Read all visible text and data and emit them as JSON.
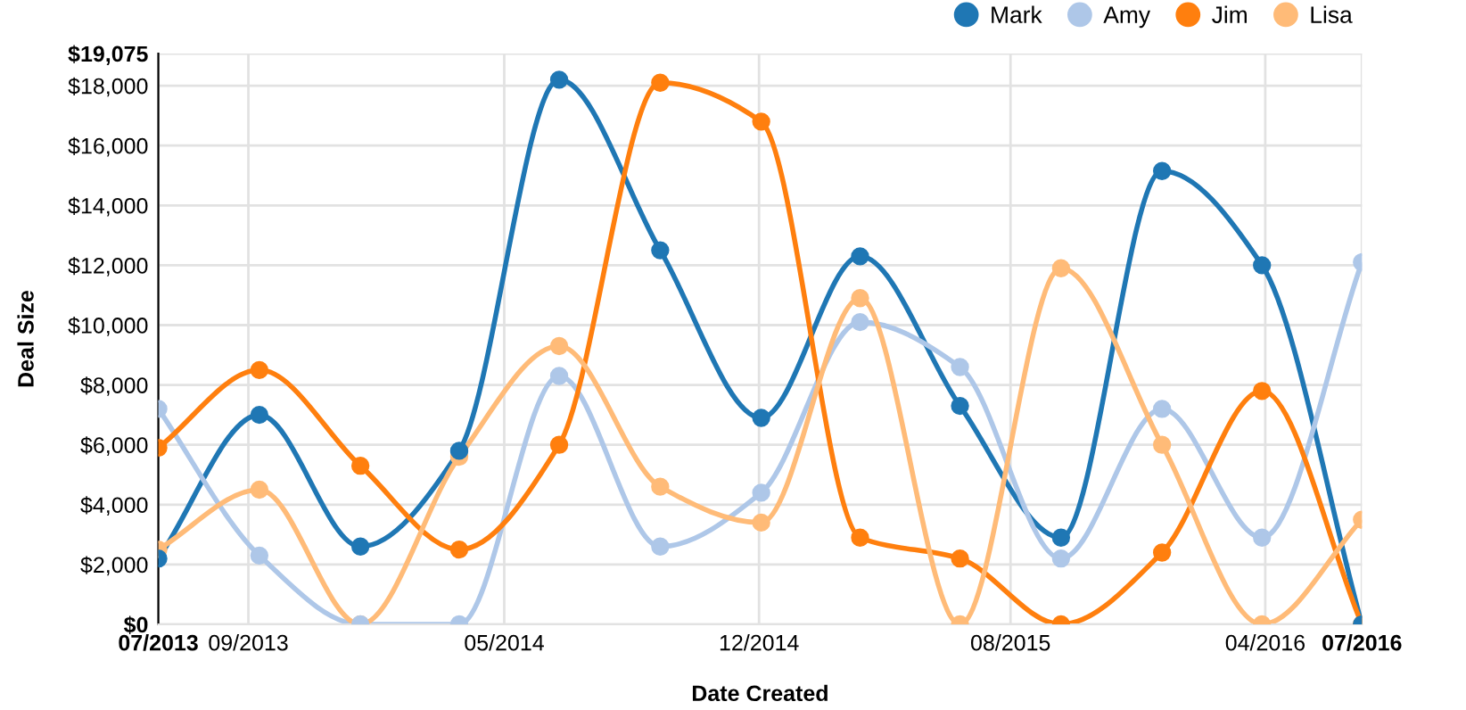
{
  "chart_data": {
    "type": "line",
    "xlabel": "Date Created",
    "ylabel": "Deal Size",
    "x": [
      "2013-07-01",
      "2013-10-01",
      "2014-01-01",
      "2014-04-01",
      "2014-07-01",
      "2014-10-01",
      "2015-01-01",
      "2015-04-01",
      "2015-07-01",
      "2015-10-01",
      "2016-01-01",
      "2016-04-01",
      "2016-07-01"
    ],
    "series": [
      {
        "name": "Mark",
        "color": "#1f77b4",
        "values": [
          2200,
          7000,
          2600,
          5800,
          18200,
          12500,
          6900,
          12300,
          7300,
          2900,
          15150,
          12000,
          0
        ]
      },
      {
        "name": "Amy",
        "color": "#aec7e8",
        "values": [
          7200,
          2300,
          0,
          0,
          8300,
          2600,
          4400,
          10100,
          8600,
          2200,
          7200,
          2900,
          12100
        ]
      },
      {
        "name": "Jim",
        "color": "#ff7f0e",
        "values": [
          5900,
          8500,
          5300,
          2500,
          6000,
          18100,
          16800,
          2900,
          2200,
          0,
          2400,
          7800,
          0
        ]
      },
      {
        "name": "Lisa",
        "color": "#ffbb78",
        "values": [
          2500,
          4500,
          0,
          5600,
          9300,
          4600,
          3400,
          10900,
          0,
          11900,
          6000,
          0,
          3500
        ]
      }
    ],
    "xlim": [
      "2013-07-01",
      "2016-07-01"
    ],
    "xticks": [
      {
        "value": "2013-07-01",
        "label": "07/2013"
      },
      {
        "value": "2013-09-21",
        "label": "09/2013"
      },
      {
        "value": "2014-05-12",
        "label": "05/2014"
      },
      {
        "value": "2014-12-30",
        "label": "12/2014"
      },
      {
        "value": "2015-08-16",
        "label": "08/2015"
      },
      {
        "value": "2016-04-04",
        "label": "04/2016"
      },
      {
        "value": "2016-07-01",
        "label": "07/2016"
      }
    ],
    "ylim": [
      0,
      19075
    ],
    "yticks": [
      {
        "value": 0,
        "label": "$0"
      },
      {
        "value": 2000,
        "label": "$2,000"
      },
      {
        "value": 4000,
        "label": "$4,000"
      },
      {
        "value": 6000,
        "label": "$6,000"
      },
      {
        "value": 8000,
        "label": "$8,000"
      },
      {
        "value": 10000,
        "label": "$10,000"
      },
      {
        "value": 12000,
        "label": "$12,000"
      },
      {
        "value": 14000,
        "label": "$14,000"
      },
      {
        "value": 16000,
        "label": "$16,000"
      },
      {
        "value": 18000,
        "label": "$18,000"
      },
      {
        "value": 19075,
        "label": "$19,075"
      }
    ],
    "grid": true,
    "legend": "top right",
    "marker": "circle",
    "line_style": "solid"
  }
}
